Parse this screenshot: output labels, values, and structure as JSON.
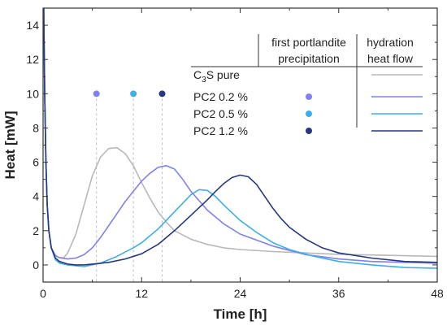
{
  "chart_data": {
    "type": "line",
    "xlabel": "Time [h]",
    "ylabel": "Heat [mW]",
    "xlim": [
      0,
      48
    ],
    "ylim": [
      -1,
      15
    ],
    "xticks": [
      0,
      12,
      24,
      36,
      48
    ],
    "yticks": [
      0,
      2,
      4,
      6,
      8,
      10,
      12,
      14
    ],
    "grid": false,
    "legend_placement": "top-right",
    "legend_headers": {
      "precipitation": [
        "first portlandite",
        "precipitation"
      ],
      "flow": [
        "hydration",
        "heat flow"
      ]
    },
    "series": [
      {
        "name_parts": [
          "C",
          "3",
          "S pure"
        ],
        "color": "#b8b8b8",
        "x": [
          0.08,
          0.2,
          0.35,
          0.5,
          0.7,
          1,
          1.5,
          2,
          2.5,
          3,
          4,
          5,
          6,
          7,
          8,
          9,
          10,
          11,
          12,
          13,
          14,
          15,
          16,
          18,
          20,
          22,
          24,
          28,
          32,
          36,
          40,
          44,
          48
        ],
        "y": [
          15,
          10,
          6,
          3.5,
          2,
          1,
          0.55,
          0.42,
          0.42,
          0.7,
          1.8,
          3.5,
          5.2,
          6.3,
          6.8,
          6.85,
          6.5,
          5.8,
          4.8,
          3.9,
          3.1,
          2.5,
          2.0,
          1.5,
          1.2,
          1.0,
          0.9,
          0.78,
          0.7,
          0.62,
          0.58,
          0.54,
          0.5
        ]
      },
      {
        "name": "PC2 0.2 %",
        "color": "#8080ee",
        "first_precipitation_time": 6.5,
        "x": [
          0.08,
          0.2,
          0.35,
          0.5,
          0.7,
          1,
          1.5,
          2,
          3,
          4,
          5,
          6,
          7,
          8,
          9,
          10,
          11,
          12,
          13,
          14,
          15,
          16,
          17,
          18,
          20,
          22,
          24,
          28,
          32,
          36,
          40,
          44,
          48
        ],
        "y": [
          15,
          10,
          6,
          3.5,
          2,
          1,
          0.55,
          0.42,
          0.35,
          0.4,
          0.6,
          1.0,
          1.6,
          2.3,
          3.0,
          3.7,
          4.3,
          4.9,
          5.35,
          5.7,
          5.8,
          5.6,
          5.0,
          4.3,
          3.2,
          2.4,
          1.8,
          1.1,
          0.6,
          0.35,
          0.2,
          0.15,
          0.1
        ]
      },
      {
        "name": "PC2 0.5 %",
        "color": "#3faee6",
        "first_precipitation_time": 11,
        "x": [
          0.08,
          0.2,
          0.35,
          0.5,
          0.7,
          1,
          1.5,
          2,
          3,
          4,
          5,
          6,
          7,
          8,
          9,
          10,
          11,
          12,
          13,
          14,
          15,
          16,
          17,
          18,
          19,
          20,
          21,
          22,
          24,
          26,
          28,
          30,
          33,
          36,
          40,
          44,
          48
        ],
        "y": [
          15,
          10,
          6,
          3.5,
          2,
          1,
          0.3,
          0.1,
          0.0,
          -0.05,
          -0.1,
          0.0,
          0.1,
          0.3,
          0.5,
          0.75,
          1.0,
          1.3,
          1.7,
          2.1,
          2.6,
          3.1,
          3.6,
          4.1,
          4.4,
          4.35,
          4.0,
          3.5,
          2.6,
          1.9,
          1.3,
          0.9,
          0.5,
          0.2,
          0.0,
          -0.15,
          -0.2
        ]
      },
      {
        "name": "PC2 1.2 %",
        "color": "#26387e",
        "first_precipitation_time": 14.5,
        "x": [
          0.08,
          0.2,
          0.35,
          0.5,
          0.7,
          1,
          1.5,
          2,
          3,
          4,
          5,
          6,
          8,
          10,
          12,
          14,
          16,
          18,
          20,
          21,
          22,
          23,
          24,
          25,
          26,
          27,
          28,
          29,
          30,
          32,
          34,
          36,
          40,
          44,
          48
        ],
        "y": [
          15,
          10,
          6,
          3.5,
          2,
          1,
          0.4,
          0.2,
          0.05,
          0.0,
          0.0,
          0.05,
          0.15,
          0.35,
          0.65,
          1.2,
          2.0,
          2.9,
          3.8,
          4.3,
          4.75,
          5.1,
          5.25,
          5.15,
          4.7,
          4.0,
          3.3,
          2.7,
          2.2,
          1.5,
          1.0,
          0.7,
          0.4,
          0.2,
          0.15
        ]
      }
    ]
  }
}
